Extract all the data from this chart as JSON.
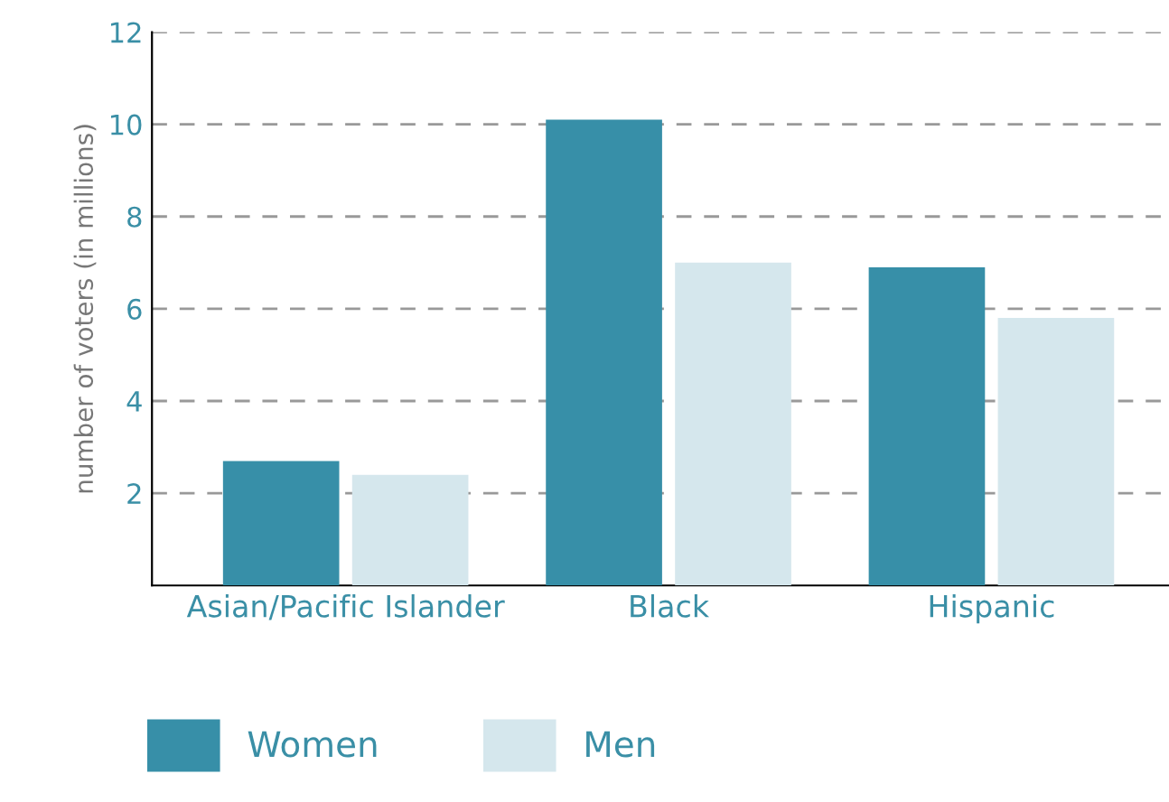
{
  "chart_data": {
    "type": "bar",
    "ylabel": "number of voters (in millions)",
    "categories": [
      "Asian/Pacific Islander",
      "Black",
      "Hispanic"
    ],
    "series": [
      {
        "name": "Women",
        "color": "#378fa8",
        "values": [
          2.7,
          10.1,
          6.9
        ]
      },
      {
        "name": "Men",
        "color": "#d5e7ed",
        "values": [
          2.4,
          7.0,
          5.8
        ]
      }
    ],
    "ylim": [
      0,
      12
    ],
    "yticks": [
      2,
      4,
      6,
      8,
      10,
      12
    ],
    "grid": "y",
    "legend": "bottom"
  }
}
